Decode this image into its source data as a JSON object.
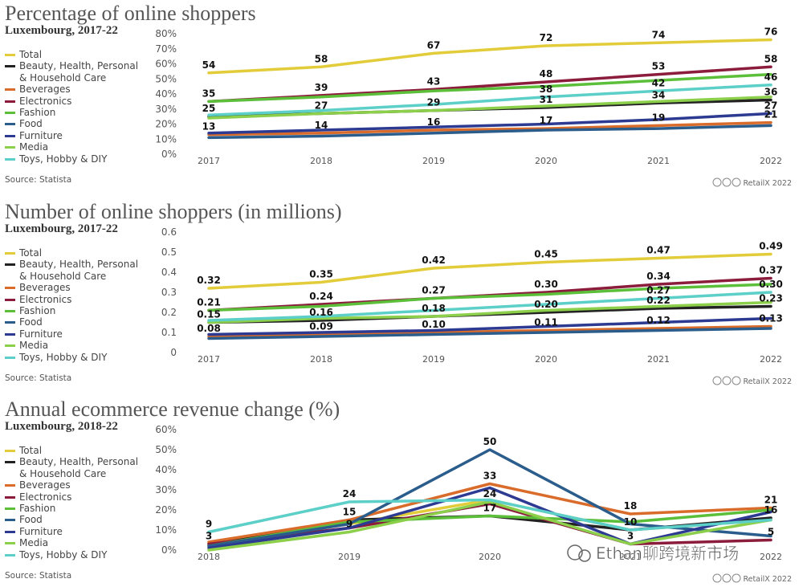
{
  "chart_data": [
    {
      "type": "line",
      "title": "Percentage of online shoppers",
      "subtitle": "Luxembourg, 2017-22",
      "source": "Source: Statista",
      "credit": "RetailX 2022",
      "categories": [
        "2017",
        "2018",
        "2019",
        "2020",
        "2021",
        "2022"
      ],
      "ylim": [
        0,
        80
      ],
      "yticks": [
        {
          "value": 0,
          "label": "0%"
        },
        {
          "value": 10,
          "label": "10%"
        },
        {
          "value": 20,
          "label": "20%"
        },
        {
          "value": 30,
          "label": "30%"
        },
        {
          "value": 40,
          "label": "40%"
        },
        {
          "value": 50,
          "label": "50%"
        },
        {
          "value": 60,
          "label": "60%"
        },
        {
          "value": 70,
          "label": "70%"
        },
        {
          "value": 80,
          "label": "80%"
        }
      ],
      "series": [
        {
          "name": "Total",
          "color": "#e2cc3a",
          "values": [
            54,
            58,
            67,
            72,
            74,
            76
          ],
          "data_labels": [
            0,
            1,
            2,
            3,
            4,
            5
          ]
        },
        {
          "name": "Beauty, Health, Personal & Household Care",
          "color": "#222222",
          "values": [
            25,
            27,
            29,
            31,
            34,
            36
          ],
          "data_labels": [
            0,
            1,
            2,
            3,
            4,
            5
          ]
        },
        {
          "name": "Beverages",
          "color": "#d96b2b",
          "values": [
            13,
            14,
            16,
            17,
            19,
            21
          ],
          "data_labels": [
            0,
            1,
            2,
            3,
            4,
            5
          ]
        },
        {
          "name": "Electronics",
          "color": "#8b1c3c",
          "values": [
            35,
            39,
            43,
            48,
            53,
            58
          ],
          "data_labels": [
            0,
            1,
            2,
            3,
            4,
            5
          ]
        },
        {
          "name": "Fashion",
          "color": "#5cbf3a",
          "values": [
            35,
            38,
            42,
            45,
            49,
            53
          ]
        },
        {
          "name": "Food",
          "color": "#2b5d8c",
          "values": [
            11,
            12,
            14,
            16,
            17,
            19
          ]
        },
        {
          "name": "Furniture",
          "color": "#2d3a92",
          "values": [
            14,
            16,
            18,
            20,
            23,
            27
          ],
          "data_labels": [
            5
          ]
        },
        {
          "name": "Media",
          "color": "#8ccf4a",
          "values": [
            24,
            27,
            29,
            32,
            35,
            38
          ]
        },
        {
          "name": "Toys, Hobby & DIY",
          "color": "#5ccfc8",
          "values": [
            26,
            29,
            33,
            38,
            42,
            46
          ],
          "data_labels": [
            3,
            4,
            5
          ]
        }
      ]
    },
    {
      "type": "line",
      "title": "Number of online shoppers (in millions)",
      "subtitle": "Luxembourg, 2017-22",
      "source": "Source: Statista",
      "credit": "RetailX 2022",
      "categories": [
        "2017",
        "2018",
        "2019",
        "2020",
        "2021",
        "2022"
      ],
      "ylim": [
        0,
        0.6
      ],
      "yticks": [
        0,
        0.1,
        0.2,
        0.3,
        0.4,
        0.5,
        0.6
      ],
      "series": [
        {
          "name": "Total",
          "color": "#e2cc3a",
          "values": [
            0.32,
            0.35,
            0.42,
            0.45,
            0.47,
            0.49
          ],
          "data_labels": [
            0,
            1,
            2,
            3,
            4,
            5
          ]
        },
        {
          "name": "Beauty, Health, Personal & Household Care",
          "color": "#222222",
          "values": [
            0.15,
            0.16,
            0.18,
            0.2,
            0.22,
            0.23
          ],
          "data_labels": [
            0,
            1,
            2,
            3,
            4,
            5
          ],
          "value_labels": [
            "0.15",
            "0.16",
            "0.18",
            "0.20",
            "0.22",
            "0.23"
          ]
        },
        {
          "name": "Beverages",
          "color": "#d96b2b",
          "values": [
            0.08,
            0.09,
            0.1,
            0.11,
            0.12,
            0.13
          ],
          "data_labels": [
            0,
            1,
            2,
            3,
            4,
            5
          ],
          "value_labels": [
            "0.08",
            "0.09",
            "0.10",
            "0.11",
            "0.12",
            "0.13"
          ]
        },
        {
          "name": "Electronics",
          "color": "#8b1c3c",
          "values": [
            0.21,
            0.24,
            0.27,
            0.3,
            0.34,
            0.37
          ],
          "data_labels": [
            0,
            1,
            2,
            3,
            4,
            5
          ],
          "value_labels": [
            "0.21",
            "0.24",
            "0.27",
            "0.30",
            "0.34",
            "0.37"
          ]
        },
        {
          "name": "Fashion",
          "color": "#5cbf3a",
          "values": [
            0.21,
            0.23,
            0.27,
            0.29,
            0.32,
            0.34
          ]
        },
        {
          "name": "Food",
          "color": "#2b5d8c",
          "values": [
            0.07,
            0.08,
            0.09,
            0.1,
            0.11,
            0.12
          ]
        },
        {
          "name": "Furniture",
          "color": "#2d3a92",
          "values": [
            0.09,
            0.1,
            0.11,
            0.13,
            0.15,
            0.17
          ]
        },
        {
          "name": "Media",
          "color": "#8ccf4a",
          "values": [
            0.15,
            0.17,
            0.18,
            0.21,
            0.23,
            0.25
          ]
        },
        {
          "name": "Toys, Hobby & DIY",
          "color": "#5ccfc8",
          "values": [
            0.16,
            0.18,
            0.21,
            0.24,
            0.27,
            0.3
          ],
          "data_labels": [
            4,
            5
          ],
          "value_labels": [
            null,
            null,
            null,
            null,
            "0.27",
            "0.30"
          ]
        }
      ]
    },
    {
      "type": "line",
      "title": "Annual ecommerce revenue change (%)",
      "subtitle": "Luxembourg, 2018-22",
      "source": "Source: Statista",
      "credit": "RetailX 2022",
      "categories": [
        "2018",
        "2019",
        "2020",
        "2021",
        "2022"
      ],
      "ylim": [
        0,
        60
      ],
      "yticks": [
        {
          "value": 0,
          "label": "0%"
        },
        {
          "value": 10,
          "label": "10%"
        },
        {
          "value": 20,
          "label": "20%"
        },
        {
          "value": 30,
          "label": "30%"
        },
        {
          "value": 40,
          "label": "40%"
        },
        {
          "value": 50,
          "label": "50%"
        },
        {
          "value": 60,
          "label": "60%"
        }
      ],
      "series": [
        {
          "name": "Total",
          "color": "#e2cc3a",
          "values": [
            3,
            13,
            25,
            10,
            15
          ]
        },
        {
          "name": "Beauty, Health, Personal & Household Care",
          "color": "#222222",
          "values": [
            3,
            15,
            17,
            10,
            16
          ],
          "data_labels": [
            0,
            2,
            3,
            4
          ]
        },
        {
          "name": "Beverages",
          "color": "#d96b2b",
          "values": [
            4,
            15,
            33,
            18,
            21
          ],
          "data_labels": [
            1,
            2,
            3,
            4
          ]
        },
        {
          "name": "Electronics",
          "color": "#8b1c3c",
          "values": [
            3,
            11,
            23,
            3,
            5
          ],
          "data_labels": [
            4
          ]
        },
        {
          "name": "Fashion",
          "color": "#5cbf3a",
          "values": [
            2,
            14,
            17,
            14,
            20
          ]
        },
        {
          "name": "Food",
          "color": "#2b5d8c",
          "values": [
            2,
            13,
            50,
            13,
            7
          ],
          "data_labels": [
            2
          ]
        },
        {
          "name": "Furniture",
          "color": "#2d3a92",
          "values": [
            1,
            11,
            31,
            3,
            19
          ]
        },
        {
          "name": "Media",
          "color": "#8ccf4a",
          "values": [
            0,
            9,
            24,
            3,
            15
          ],
          "data_labels": [
            1,
            2,
            3
          ]
        },
        {
          "name": "Toys, Hobby & DIY",
          "color": "#5ccfc8",
          "values": [
            9,
            24,
            25,
            10,
            15
          ],
          "data_labels": [
            0,
            1
          ]
        }
      ]
    }
  ],
  "watermark": "Ethan聊跨境新市场"
}
